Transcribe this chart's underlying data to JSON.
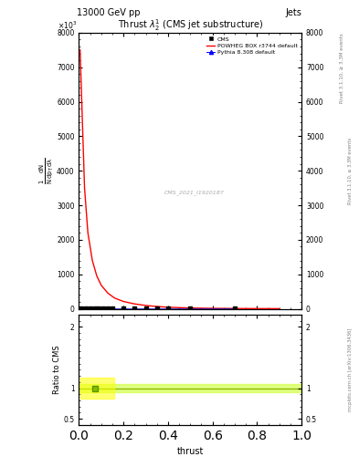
{
  "title": "Thrust $\\lambda$_2$^1$ (CMS jet substructure)",
  "header_left": "13000 GeV pp",
  "header_right": "Jets",
  "xlabel": "thrust",
  "watermark": "CMS_2021_I1920187",
  "ylim_main": [
    0,
    8000
  ],
  "ylim_ratio": [
    0.4,
    2.2
  ],
  "xlim": [
    0,
    1
  ],
  "yticks_main": [
    0,
    1000,
    2000,
    3000,
    4000,
    5000,
    6000,
    7000,
    8000
  ],
  "ytick_labels_main": [
    "0",
    "1000",
    "2000",
    "3000",
    "4000",
    "5000",
    "6000",
    "7000",
    "8000"
  ],
  "powheg_x": [
    0.005,
    0.015,
    0.025,
    0.04,
    0.06,
    0.08,
    0.1,
    0.13,
    0.16,
    0.2,
    0.25,
    0.3,
    0.35,
    0.4,
    0.45,
    0.5,
    0.55,
    0.6,
    0.65,
    0.7,
    0.75,
    0.8,
    0.85,
    0.9
  ],
  "powheg_y": [
    7500,
    5500,
    3500,
    2200,
    1400,
    950,
    680,
    450,
    310,
    210,
    140,
    95,
    65,
    45,
    32,
    22,
    16,
    12,
    9,
    7,
    6,
    5,
    4,
    3
  ],
  "cms_x": [
    0.01,
    0.03,
    0.05,
    0.07,
    0.09,
    0.11,
    0.13,
    0.15,
    0.2,
    0.25,
    0.3,
    0.35,
    0.4,
    0.5,
    0.7
  ],
  "cms_y": [
    20,
    20,
    20,
    20,
    20,
    20,
    20,
    20,
    20,
    20,
    20,
    20,
    20,
    20,
    20
  ],
  "pythia_x": [
    0.01,
    0.03,
    0.05,
    0.07,
    0.09,
    0.11,
    0.13,
    0.15,
    0.2,
    0.25,
    0.3,
    0.35,
    0.4,
    0.5,
    0.7
  ],
  "pythia_y": [
    20,
    20,
    20,
    20,
    20,
    20,
    20,
    20,
    20,
    20,
    20,
    20,
    20,
    20,
    20
  ],
  "powheg_color": "#ff0000",
  "pythia_color": "#0000cc",
  "cms_color": "#000000",
  "bg_color": "#ffffff",
  "ratio_band_color": "#ccff33",
  "ratio_line_color": "#88bb00",
  "ratio_ylim": [
    0.4,
    2.2
  ],
  "ratio_yticks": [
    0.5,
    1.0,
    2.0
  ],
  "ratio_ytick_labels": [
    "0.5",
    "1",
    "2"
  ],
  "right_label1": "Rivet 3.1.10, ≥ 3.3M events",
  "right_label2": "mcplots.cern.ch [arXiv:1306.3436]"
}
